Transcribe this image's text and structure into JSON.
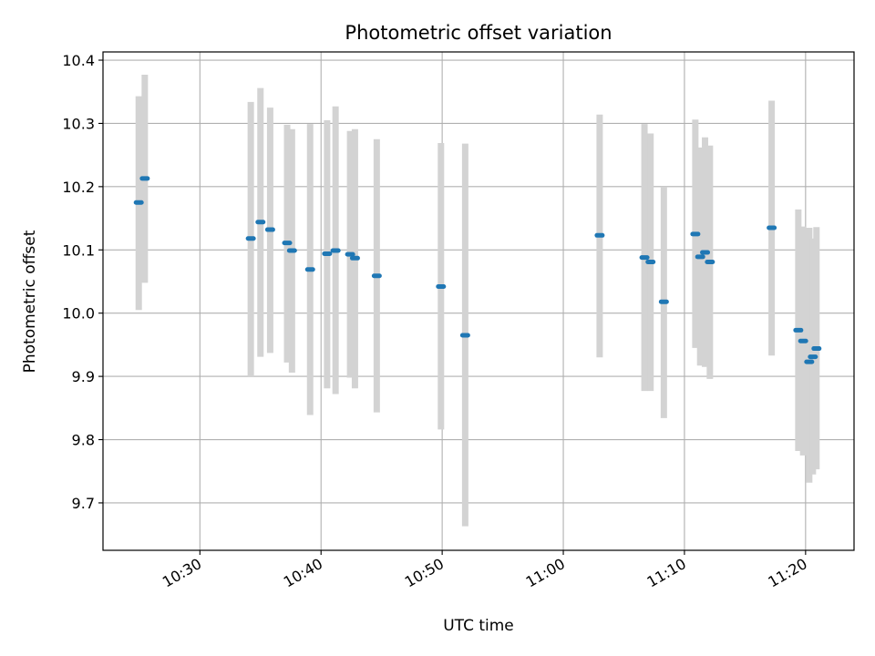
{
  "chart_data": {
    "type": "scatter",
    "title": "Photometric offset variation",
    "xlabel": "UTC time",
    "ylabel": "Photometric offset",
    "x_unit": "minutes since 10:00 UTC",
    "xlim": [
      22,
      84
    ],
    "ylim": [
      9.625,
      10.413
    ],
    "grid": true,
    "x_ticks": [
      {
        "value": 30,
        "label": "10:30"
      },
      {
        "value": 40,
        "label": "10:40"
      },
      {
        "value": 50,
        "label": "10:50"
      },
      {
        "value": 60,
        "label": "11:00"
      },
      {
        "value": 70,
        "label": "11:10"
      },
      {
        "value": 80,
        "label": "11:20"
      }
    ],
    "y_ticks": [
      {
        "value": 9.7,
        "label": "9.7"
      },
      {
        "value": 9.8,
        "label": "9.8"
      },
      {
        "value": 9.9,
        "label": "9.9"
      },
      {
        "value": 10.0,
        "label": "10.0"
      },
      {
        "value": 10.1,
        "label": "10.1"
      },
      {
        "value": 10.2,
        "label": "10.2"
      },
      {
        "value": 10.3,
        "label": "10.3"
      },
      {
        "value": 10.4,
        "label": "10.4"
      }
    ],
    "colors": {
      "point": "#1f77b4",
      "errorbar": "#d3d3d3",
      "grid": "#b0b0b0"
    },
    "series": [
      {
        "name": "Photometric offset",
        "points": [
          {
            "t": 24.95,
            "y": 10.175,
            "lo": 10.005,
            "hi": 10.343
          },
          {
            "t": 25.45,
            "y": 10.213,
            "lo": 10.048,
            "hi": 10.377
          },
          {
            "t": 34.2,
            "y": 10.118,
            "lo": 9.9,
            "hi": 10.334
          },
          {
            "t": 35.0,
            "y": 10.144,
            "lo": 9.931,
            "hi": 10.356
          },
          {
            "t": 35.8,
            "y": 10.132,
            "lo": 9.937,
            "hi": 10.325
          },
          {
            "t": 37.2,
            "y": 10.111,
            "lo": 9.922,
            "hi": 10.298
          },
          {
            "t": 37.6,
            "y": 10.099,
            "lo": 9.906,
            "hi": 10.291
          },
          {
            "t": 39.1,
            "y": 10.069,
            "lo": 9.839,
            "hi": 10.299
          },
          {
            "t": 40.5,
            "y": 10.094,
            "lo": 9.881,
            "hi": 10.305
          },
          {
            "t": 41.2,
            "y": 10.099,
            "lo": 9.872,
            "hi": 10.327
          },
          {
            "t": 42.4,
            "y": 10.093,
            "lo": 9.898,
            "hi": 10.288
          },
          {
            "t": 42.8,
            "y": 10.087,
            "lo": 9.881,
            "hi": 10.291
          },
          {
            "t": 44.6,
            "y": 10.059,
            "lo": 9.843,
            "hi": 10.275
          },
          {
            "t": 49.9,
            "y": 10.042,
            "lo": 9.816,
            "hi": 10.269
          },
          {
            "t": 51.9,
            "y": 9.965,
            "lo": 9.663,
            "hi": 10.268
          },
          {
            "t": 63.0,
            "y": 10.123,
            "lo": 9.93,
            "hi": 10.314
          },
          {
            "t": 66.7,
            "y": 10.088,
            "lo": 9.877,
            "hi": 10.299
          },
          {
            "t": 67.2,
            "y": 10.081,
            "lo": 9.877,
            "hi": 10.284
          },
          {
            "t": 68.3,
            "y": 10.018,
            "lo": 9.834,
            "hi": 10.2
          },
          {
            "t": 70.9,
            "y": 10.125,
            "lo": 9.945,
            "hi": 10.306
          },
          {
            "t": 71.3,
            "y": 10.089,
            "lo": 9.917,
            "hi": 10.262
          },
          {
            "t": 71.7,
            "y": 10.096,
            "lo": 9.915,
            "hi": 10.278
          },
          {
            "t": 72.1,
            "y": 10.081,
            "lo": 9.896,
            "hi": 10.265
          },
          {
            "t": 77.2,
            "y": 10.135,
            "lo": 9.933,
            "hi": 10.336
          },
          {
            "t": 79.4,
            "y": 9.973,
            "lo": 9.782,
            "hi": 10.164
          },
          {
            "t": 79.8,
            "y": 9.956,
            "lo": 9.775,
            "hi": 10.137
          },
          {
            "t": 80.3,
            "y": 9.923,
            "lo": 9.732,
            "hi": 10.135
          },
          {
            "t": 80.6,
            "y": 9.931,
            "lo": 9.745,
            "hi": 10.118
          },
          {
            "t": 80.9,
            "y": 9.944,
            "lo": 9.753,
            "hi": 10.136
          }
        ]
      }
    ]
  }
}
